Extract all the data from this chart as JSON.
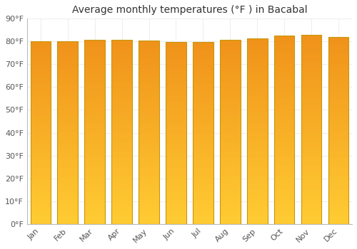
{
  "title": "Average monthly temperatures (°F ) in Bacabal",
  "months": [
    "Jan",
    "Feb",
    "Mar",
    "Apr",
    "May",
    "Jun",
    "Jul",
    "Aug",
    "Sep",
    "Oct",
    "Nov",
    "Dec"
  ],
  "values": [
    80.1,
    80.1,
    80.6,
    80.8,
    80.4,
    79.9,
    79.7,
    80.8,
    81.5,
    82.6,
    82.8,
    81.9
  ],
  "ylim": [
    0,
    90
  ],
  "yticks": [
    0,
    10,
    20,
    30,
    40,
    50,
    60,
    70,
    80,
    90
  ],
  "ytick_labels": [
    "0°F",
    "10°F",
    "20°F",
    "30°F",
    "40°F",
    "50°F",
    "60°F",
    "70°F",
    "80°F",
    "90°F"
  ],
  "bar_color_top": "#F0921A",
  "bar_color_bottom": "#FFCC33",
  "bar_edge_color": "#C8960A",
  "background_color": "#FFFFFF",
  "grid_color": "#EEEEEE",
  "title_fontsize": 10,
  "tick_fontsize": 8,
  "xlabel_rotation": 45
}
